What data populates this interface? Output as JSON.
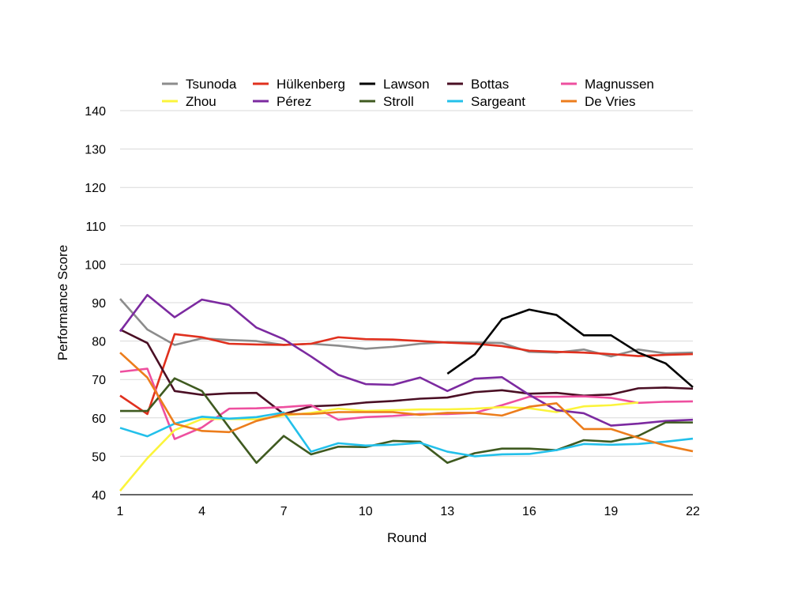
{
  "chart_data": {
    "type": "line",
    "title": "",
    "xlabel": "Round",
    "ylabel": "Performance Score",
    "xlim": [
      1,
      22
    ],
    "ylim": [
      40,
      140
    ],
    "x_ticks": [
      1,
      4,
      7,
      10,
      13,
      16,
      19,
      22
    ],
    "y_ticks": [
      40,
      50,
      60,
      70,
      80,
      90,
      100,
      110,
      120,
      130,
      140
    ],
    "grid": "horizontal",
    "legend_position": "top",
    "series": [
      {
        "name": "Tsunoda",
        "color": "#8c8c8c",
        "x_start": 1,
        "values": [
          91,
          83,
          79,
          80.7,
          80.3,
          80,
          79,
          79.3,
          78.8,
          78,
          78.5,
          79.3,
          79.7,
          79.6,
          79.5,
          77.2,
          77,
          77.8,
          76,
          77.8,
          76.8,
          77
        ]
      },
      {
        "name": "Hülkenberg",
        "color": "#e0301e",
        "x_start": 1,
        "values": [
          65.8,
          61,
          81.8,
          81,
          79.3,
          79.1,
          79,
          79.3,
          81,
          80.5,
          80.4,
          80,
          79.6,
          79.3,
          78.7,
          77.5,
          77.2,
          77,
          76.6,
          76.1,
          76.4,
          76.6
        ]
      },
      {
        "name": "Lawson",
        "color": "#000000",
        "x_start": 13,
        "values": [
          71.5,
          76.5,
          85.7,
          88.2,
          86.8,
          81.5,
          81.5,
          77,
          74.2,
          68
        ]
      },
      {
        "name": "Bottas",
        "color": "#4a0f24",
        "x_start": 1,
        "values": [
          83,
          79.5,
          67,
          66,
          66.4,
          66.5,
          61,
          63,
          63.3,
          64,
          64.4,
          65,
          65.3,
          66.7,
          67.2,
          66.3,
          66.5,
          65.8,
          66.1,
          67.7,
          67.9,
          67.6
        ]
      },
      {
        "name": "Magnussen",
        "color": "#ee4f9f",
        "x_start": 1,
        "values": [
          72,
          72.8,
          54.5,
          57.5,
          62.4,
          62.5,
          62.8,
          63.3,
          59.5,
          60.2,
          60.5,
          61,
          61,
          61.3,
          63.3,
          65.5,
          65.5,
          65.6,
          65.2,
          63.9,
          64.2,
          64.3
        ]
      },
      {
        "name": "Zhou",
        "color": "#fbf43c",
        "x_start": 1,
        "values": [
          41,
          49.5,
          56.8,
          59.7,
          59.7,
          59.6,
          60.6,
          61.3,
          62.4,
          61.8,
          62,
          62.2,
          62.2,
          62.4,
          62.8,
          62.5,
          61.5,
          63,
          63.3,
          64
        ]
      },
      {
        "name": "Pérez",
        "color": "#7c2aa0",
        "x_start": 1,
        "values": [
          82.5,
          92,
          86.2,
          90.8,
          89.4,
          83.5,
          80.5,
          76,
          71.2,
          68.8,
          68.6,
          70.5,
          67,
          70.2,
          70.6,
          66,
          62,
          61.2,
          58,
          58.5,
          59.2,
          59.5
        ]
      },
      {
        "name": "Stroll",
        "color": "#3f5a20",
        "x_start": 1,
        "values": [
          61.8,
          61.8,
          70.3,
          67,
          57.5,
          48.3,
          55.3,
          50.5,
          52.5,
          52.4,
          54,
          53.8,
          48.3,
          50.8,
          52,
          52,
          51.6,
          54.2,
          53.8,
          55.3,
          58.8,
          58.8
        ]
      },
      {
        "name": "Sargeant",
        "color": "#23c0ea",
        "x_start": 1,
        "values": [
          57.4,
          55.2,
          58.5,
          60.3,
          59.8,
          60.2,
          61.4,
          51.2,
          53.4,
          52.8,
          53,
          53.5,
          51.2,
          50,
          50.5,
          50.6,
          51.6,
          53.2,
          53,
          53.2,
          53.8,
          54.6
        ]
      },
      {
        "name": "De Vries",
        "color": "#ec7d1c",
        "x_start": 1,
        "values": [
          77,
          70.5,
          58.5,
          56.6,
          56.3,
          59.2,
          61,
          61,
          61.5,
          61.5,
          61.5,
          60.8,
          61.3,
          61.3,
          60.6,
          62.9,
          63.8,
          57.1,
          57.1,
          54.8,
          52.8,
          51.3
        ]
      }
    ]
  }
}
